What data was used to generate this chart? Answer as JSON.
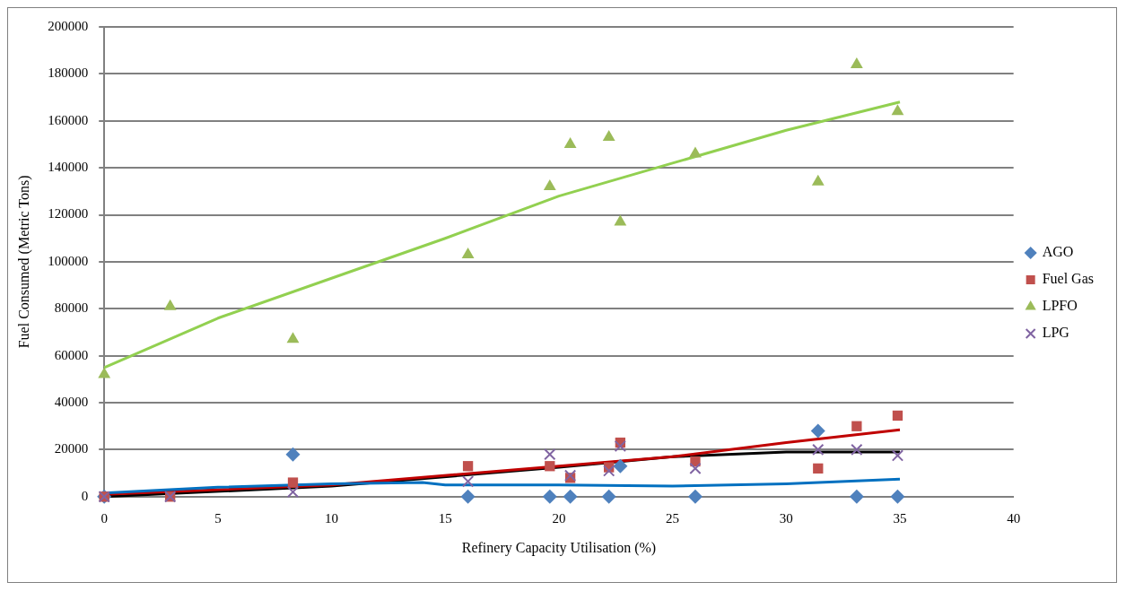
{
  "chart_data": {
    "type": "scatter",
    "xlabel": "Refinery Capacity Utilisation (%)",
    "ylabel": "Fuel Consumed (Metric Tons)",
    "x": [
      0,
      2.9,
      8.3,
      16.0,
      19.6,
      20.5,
      22.2,
      22.7,
      26.0,
      31.4,
      33.1,
      34.9
    ],
    "series": [
      {
        "name": "AGO",
        "color": "#4f81bd",
        "marker": "diamond",
        "values": [
          0,
          null,
          18000,
          0,
          0,
          0,
          0,
          13000,
          0,
          28000,
          0,
          0
        ]
      },
      {
        "name": "Fuel Gas",
        "color": "#c0504d",
        "marker": "square",
        "values": [
          0,
          0,
          6000,
          13000,
          13000,
          8000,
          12500,
          23000,
          15000,
          12000,
          30000,
          34500
        ]
      },
      {
        "name": "LPFO",
        "color": "#9bbb59",
        "marker": "triangle",
        "values": [
          52000,
          81000,
          67000,
          103000,
          132000,
          150000,
          153000,
          117000,
          146000,
          134000,
          184000,
          164000
        ]
      },
      {
        "name": "LPG",
        "color": "#8064a2",
        "marker": "cross",
        "values": [
          0,
          0,
          2000,
          6500,
          18000,
          9000,
          11000,
          21500,
          12000,
          20000,
          20000,
          17500
        ]
      },
      {
        "type": "line",
        "color": "#0070c0",
        "marker": "none",
        "x": [
          0,
          5,
          10,
          14,
          15,
          20,
          25,
          30,
          35
        ],
        "values": [
          1500,
          4000,
          5500,
          6000,
          5000,
          5000,
          4500,
          5500,
          7500
        ]
      },
      {
        "type": "line",
        "color": "#c00000",
        "marker": "none",
        "x": [
          0,
          10,
          20,
          25,
          30,
          35
        ],
        "values": [
          1000,
          5000,
          13000,
          17000,
          23000,
          28500
        ]
      },
      {
        "type": "line",
        "color": "#92d050",
        "marker": "none",
        "x": [
          0,
          5,
          10,
          15,
          20,
          25,
          30,
          35
        ],
        "values": [
          55000,
          76000,
          93000,
          110000,
          128000,
          142000,
          156000,
          168000
        ]
      },
      {
        "type": "line",
        "color": "#000000",
        "marker": "none",
        "x": [
          0,
          10,
          20,
          25,
          30,
          35
        ],
        "values": [
          0,
          4500,
          12500,
          17000,
          19000,
          19000
        ]
      }
    ],
    "xlim": [
      0,
      40
    ],
    "xticks": [
      0,
      5,
      10,
      15,
      20,
      25,
      30,
      35,
      40
    ],
    "ylim": [
      0,
      200000
    ],
    "yticks": [
      0,
      20000,
      40000,
      60000,
      80000,
      100000,
      120000,
      140000,
      160000,
      180000,
      200000
    ],
    "grid": "y",
    "legend": "right"
  }
}
